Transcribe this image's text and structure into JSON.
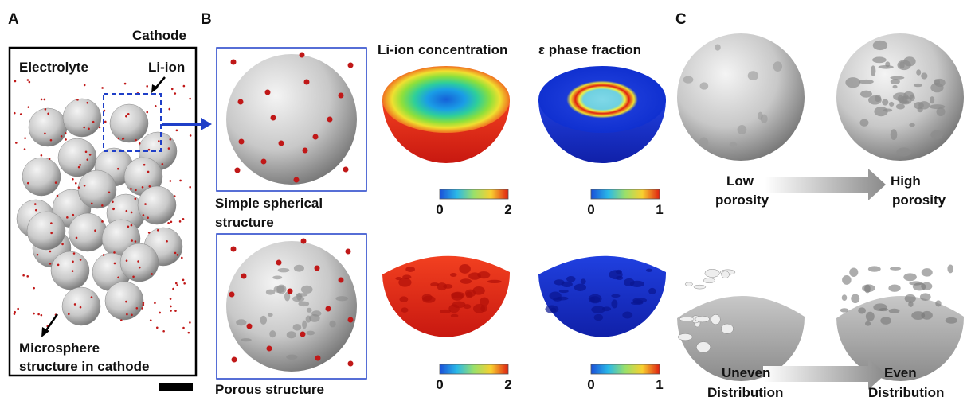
{
  "panel_a": {
    "label": "A",
    "cathode": "Cathode",
    "electrolyte": "Electrolyte",
    "li_ion": "Li-ion",
    "microsphere": [
      "Microsphere",
      "structure in cathode"
    ]
  },
  "panel_b": {
    "label": "B",
    "simple": [
      "Simple spherical",
      "structure"
    ],
    "porous": "Porous structure",
    "concentration_title": "Li-ion concentration",
    "phase_title": "ε phase fraction",
    "colorbars": [
      {
        "min": 0,
        "max": 2
      },
      {
        "min": 0,
        "max": 1
      },
      {
        "min": 0,
        "max": 2
      },
      {
        "min": 0,
        "max": 1
      }
    ]
  },
  "panel_c": {
    "label": "C",
    "low": [
      "Low",
      "porosity"
    ],
    "high": [
      "High",
      "porosity"
    ],
    "uneven": [
      "Uneven",
      "Distribution"
    ],
    "even": [
      "Even",
      "Distribution"
    ]
  }
}
